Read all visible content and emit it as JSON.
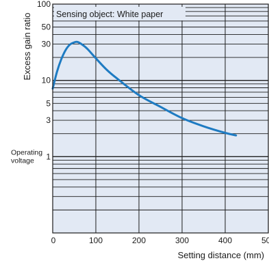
{
  "chart_data": {
    "type": "line",
    "title": "",
    "annotation": "Sensing object: White paper",
    "xlabel": "Setting distance (mm)",
    "ylabel": "Excess gain ratio",
    "x_ticks": [
      0,
      100,
      200,
      300,
      400,
      500
    ],
    "xlim": [
      0,
      500
    ],
    "y_scale": "log",
    "ylim": [
      0.1,
      100
    ],
    "y_tick_labels": [
      "100",
      "50",
      "30",
      "10",
      "5",
      "3",
      "1"
    ],
    "y_tick_values": [
      100,
      50,
      30,
      10,
      5,
      3,
      1
    ],
    "y_extra_label": {
      "text_line1": "Operating",
      "text_line2": "voltage",
      "value": 1
    },
    "grid": true,
    "colors": {
      "plot_bg": "#e2e9f4",
      "line": "#1e7bc2",
      "grid": "#1a1a1a"
    },
    "series": [
      {
        "name": "",
        "x": [
          0,
          10,
          20,
          30,
          40,
          50,
          55,
          60,
          70,
          80,
          100,
          125,
          150,
          200,
          250,
          300,
          350,
          400,
          425
        ],
        "y": [
          7.8,
          13,
          19,
          25,
          29.5,
          31.5,
          32,
          31.5,
          29,
          26,
          19.5,
          13.8,
          10.5,
          6.4,
          4.5,
          3.2,
          2.5,
          2.05,
          1.9
        ]
      }
    ]
  }
}
